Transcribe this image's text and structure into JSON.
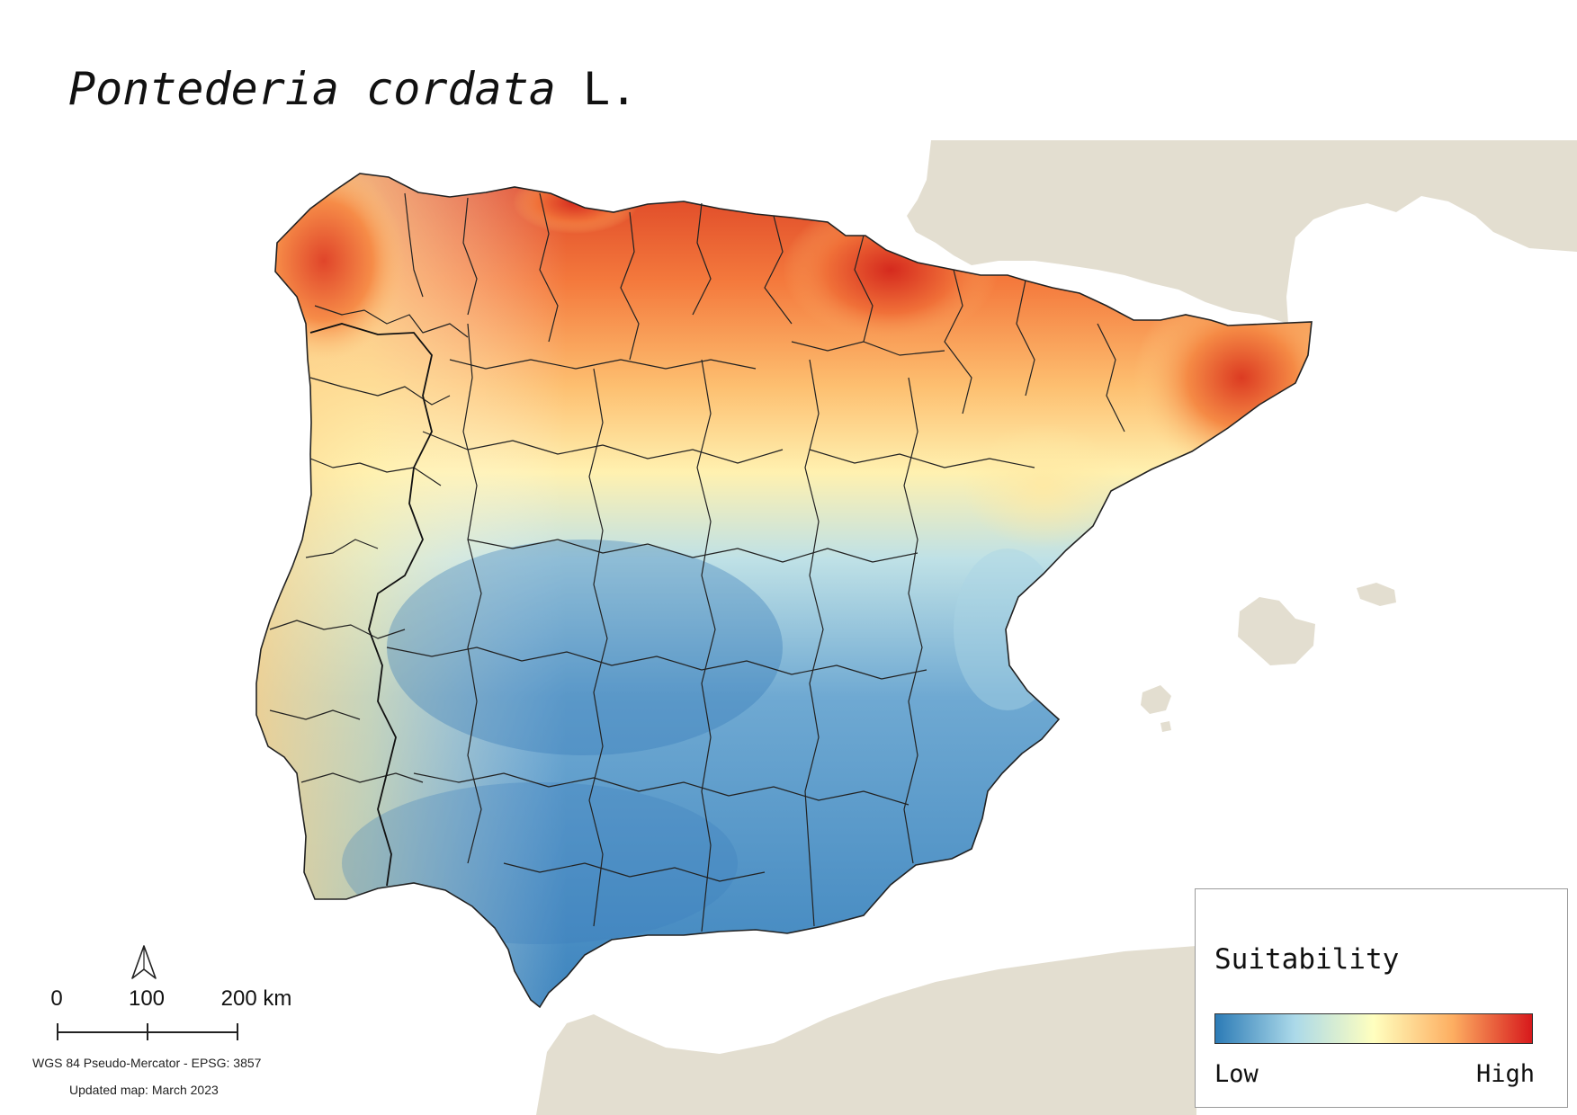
{
  "title": {
    "species": "Pontederia cordata",
    "authority": "L."
  },
  "legend": {
    "title": "Suitability",
    "low_label": "Low",
    "high_label": "High",
    "gradient_colors": [
      "#2c7bb6",
      "#abd9e9",
      "#ffffbf",
      "#fdae61",
      "#d7191c"
    ]
  },
  "scale_bar": {
    "labels": [
      "0",
      "100",
      "200 km"
    ]
  },
  "crs": "WGS 84 Pseudo-Mercator  - EPSG: 3857",
  "updated": "Updated map: March 2023",
  "colors": {
    "land_background": "#e3ded0",
    "water": "#ffffff",
    "borders": "#222222",
    "suitability_low": "#2c7bb6",
    "suitability_high": "#d7191c"
  }
}
